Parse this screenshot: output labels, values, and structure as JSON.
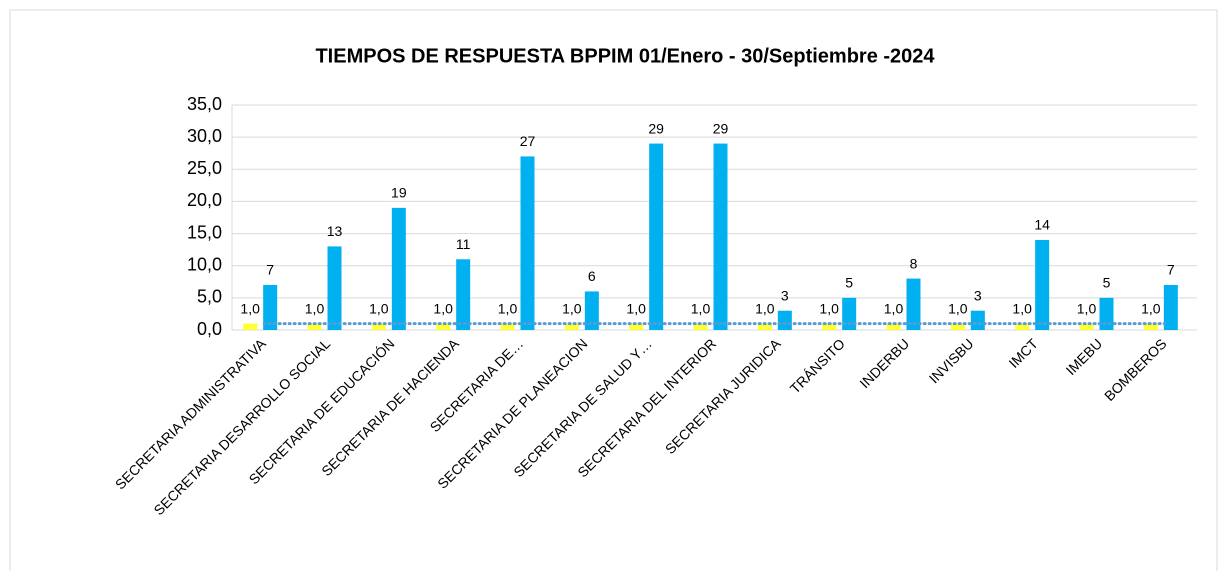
{
  "chart_data": {
    "type": "bar",
    "title": "TIEMPOS DE RESPUESTA BPPIM  01/Enero - 30/Septiembre -2024",
    "categories": [
      "SECRETARIA ADMINISTRATIVA",
      "SECRETARIA DESARROLLO SOCIAL",
      "SECRETARIA DE EDUCACIÓN",
      "SECRETARIA DE HACIENDA",
      "SECRETARIA DE…",
      "SECRETARIA DE PLANEACION",
      "SECRETARIA DE SALUD Y…",
      "SECRETARIA DEL INTERIOR",
      "SECRETARIA JURIDICA",
      "TRÁNSITO",
      "INDERBU",
      "INVISBU",
      "IMCT",
      "IMEBU",
      "BOMBEROS"
    ],
    "series": [
      {
        "color": "#ffff33",
        "values": [
          1,
          1,
          1,
          1,
          1,
          1,
          1,
          1,
          1,
          1,
          1,
          1,
          1,
          1,
          1
        ],
        "value_labels": [
          "1,0",
          "1,0",
          "1,0",
          "1,0",
          "1,0",
          "1,0",
          "1,0",
          "1,0",
          "1,0",
          "1,0",
          "1,0",
          "1,0",
          "1,0",
          "1,0",
          "1,0"
        ]
      },
      {
        "color": "#00b0f0",
        "values": [
          7,
          13,
          19,
          11,
          27,
          6,
          29,
          29,
          3,
          5,
          8,
          3,
          14,
          5,
          7
        ]
      },
      {
        "type": "line",
        "color": "#5b9bd5",
        "dashed": true,
        "values": [
          1,
          1,
          1,
          1,
          1,
          1,
          1,
          1,
          1,
          1,
          1,
          1,
          1,
          1,
          1
        ]
      }
    ],
    "ylim": [
      0,
      35
    ],
    "yticks": [
      {
        "value": 0,
        "label": "0,0"
      },
      {
        "value": 5,
        "label": "5,0"
      },
      {
        "value": 10,
        "label": "10,0"
      },
      {
        "value": 15,
        "label": "15,0"
      },
      {
        "value": 20,
        "label": "20,0"
      },
      {
        "value": 25,
        "label": "25,0"
      },
      {
        "value": 30,
        "label": "30,0"
      },
      {
        "value": 35,
        "label": "35,0"
      }
    ],
    "grid": true
  }
}
